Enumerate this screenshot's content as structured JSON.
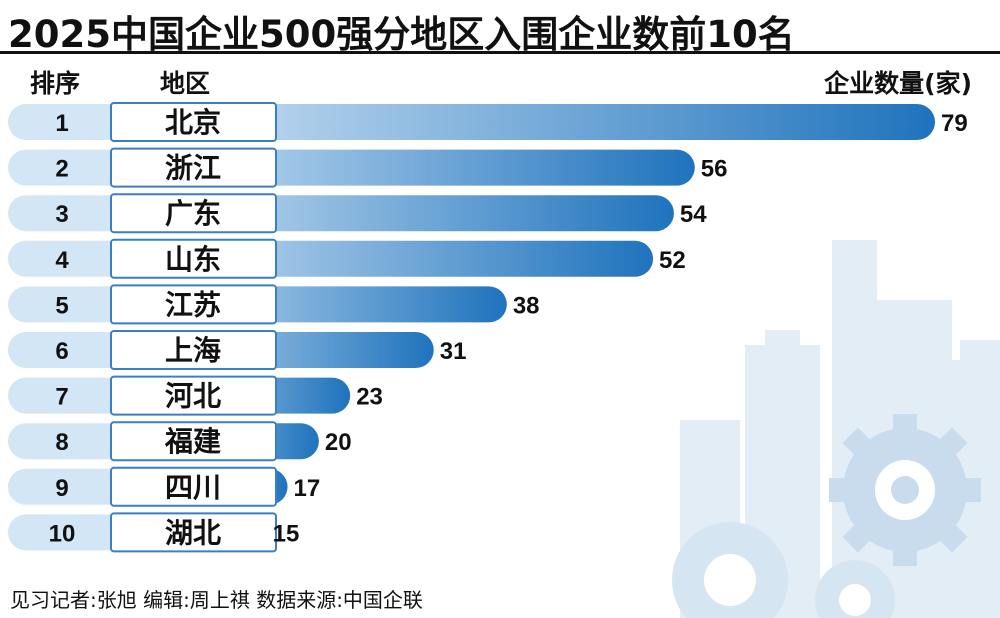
{
  "title": "2025中国企业500强分地区入围企业数前10名",
  "headers": {
    "rank": "排序",
    "region": "地区",
    "count": "企业数量(家)"
  },
  "chart_data": {
    "type": "bar",
    "orientation": "horizontal",
    "title": "2025中国企业500强分地区入围企业数前10名",
    "ranks": [
      "1",
      "2",
      "3",
      "4",
      "5",
      "6",
      "7",
      "8",
      "9",
      "10"
    ],
    "categories": [
      "北京",
      "浙江",
      "广东",
      "山东",
      "江苏",
      "上海",
      "河北",
      "福建",
      "四川",
      "湖北"
    ],
    "values": [
      79,
      56,
      54,
      52,
      38,
      31,
      23,
      20,
      17,
      15
    ],
    "ylabel": "企业数量(家)",
    "grid": false,
    "colors": {
      "bar_start": "#d6e8f7",
      "bar_end": "#1f73bd",
      "rank_pill": "#d2e6f6",
      "box_border": "#3a7fc1"
    }
  },
  "footer": "见习记者:张旭  编辑:周上祺  数据来源:中国企联"
}
